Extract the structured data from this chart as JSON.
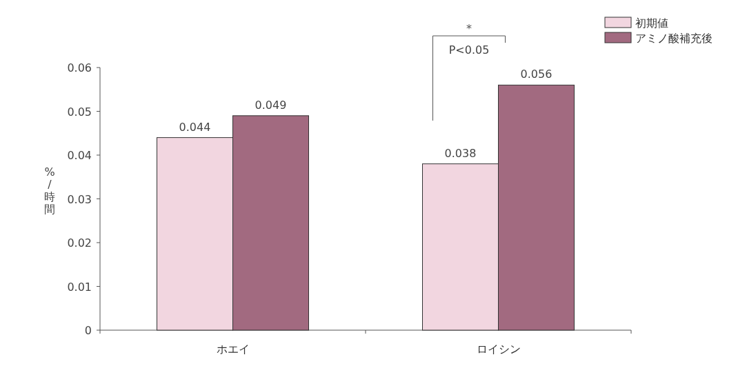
{
  "chart_data": {
    "type": "bar",
    "ylabel": "%/時間",
    "categories": [
      "ホエイ",
      "ロイシン"
    ],
    "series": [
      {
        "name": "初期値",
        "color": "#f2d6e0",
        "values": [
          0.044,
          0.038
        ]
      },
      {
        "name": "アミノ酸補充後",
        "color": "#a26a80",
        "values": [
          0.049,
          0.056
        ]
      }
    ],
    "ylim": [
      0,
      0.06
    ],
    "yticks": [
      {
        "value": 0,
        "label": "0"
      },
      0.01,
      0.02,
      0.03,
      0.04,
      0.05,
      0.06
    ],
    "data_labels": true,
    "legend": "top right",
    "grid": false,
    "annotations": [
      "*",
      "P<0.05"
    ]
  }
}
